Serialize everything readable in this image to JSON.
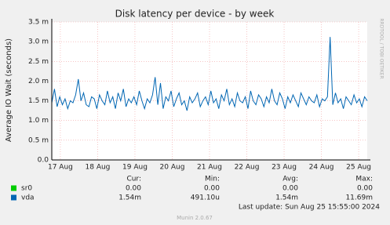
{
  "chart_data": {
    "type": "line",
    "title": "Disk latency per device - by week",
    "y_label": "Average IO Wait (seconds)",
    "side_text": "RRDTOOL / TOBI OETIKER",
    "xlim": [
      -0.23,
      8.23
    ],
    "xticks": [
      {
        "value": 0,
        "label": "17 Aug"
      },
      {
        "value": 1,
        "label": "18 Aug"
      },
      {
        "value": 2,
        "label": "19 Aug"
      },
      {
        "value": 3,
        "label": "20 Aug"
      },
      {
        "value": 4,
        "label": "21 Aug"
      },
      {
        "value": 5,
        "label": "22 Aug"
      },
      {
        "value": 6,
        "label": "23 Aug"
      },
      {
        "value": 7,
        "label": "24 Aug"
      },
      {
        "value": 8,
        "label": "25 Aug"
      }
    ],
    "ylim": [
      0,
      3.5
    ],
    "yticks": [
      {
        "value": 0,
        "label": "0.0"
      },
      {
        "value": 0.5,
        "label": "0.5 m"
      },
      {
        "value": 1,
        "label": "1.0 m"
      },
      {
        "value": 1.5,
        "label": "1.5 m"
      },
      {
        "value": 2,
        "label": "2.0 m"
      },
      {
        "value": 2.5,
        "label": "2.5 m"
      },
      {
        "value": 3,
        "label": "3.0 m"
      },
      {
        "value": 3.5,
        "label": "3.5 m"
      }
    ],
    "grid": true,
    "series": [
      {
        "name": "sr0",
        "color": "#00cc00",
        "values": [
          0,
          0
        ],
        "cur": "0.00",
        "min": "0.00",
        "avg": "0.00",
        "max": "0.00"
      },
      {
        "name": "vda",
        "color": "#0066b3",
        "values": [
          1.45,
          1.8,
          1.35,
          1.6,
          1.4,
          1.55,
          1.3,
          1.5,
          1.45,
          1.65,
          2.05,
          1.5,
          1.7,
          1.4,
          1.35,
          1.6,
          1.55,
          1.3,
          1.65,
          1.5,
          1.4,
          1.75,
          1.45,
          1.6,
          1.3,
          1.7,
          1.5,
          1.8,
          1.35,
          1.55,
          1.45,
          1.6,
          1.4,
          1.75,
          1.5,
          1.3,
          1.55,
          1.45,
          1.65,
          2.1,
          1.4,
          1.95,
          1.3,
          1.6,
          1.5,
          1.75,
          1.35,
          1.55,
          1.7,
          1.4,
          1.5,
          1.25,
          1.6,
          1.45,
          1.55,
          1.7,
          1.35,
          1.5,
          1.6,
          1.4,
          1.75,
          1.45,
          1.55,
          1.3,
          1.65,
          1.5,
          1.8,
          1.4,
          1.55,
          1.35,
          1.7,
          1.5,
          1.45,
          1.6,
          1.3,
          1.75,
          1.5,
          1.4,
          1.65,
          1.55,
          1.35,
          1.6,
          1.45,
          1.8,
          1.5,
          1.4,
          1.7,
          1.55,
          1.3,
          1.6,
          1.45,
          1.65,
          1.5,
          1.35,
          1.7,
          1.55,
          1.4,
          1.6,
          1.5,
          1.45,
          1.65,
          1.35,
          1.55,
          1.5,
          1.6,
          3.12,
          1.4,
          1.7,
          1.45,
          1.55,
          1.3,
          1.6,
          1.5,
          1.4,
          1.65,
          1.45,
          1.55,
          1.35,
          1.6,
          1.5
        ],
        "cur": "1.54m",
        "min": "491.10u",
        "avg": "1.54m",
        "max": "11.69m"
      }
    ],
    "columns": [
      "Cur:",
      "Min:",
      "Avg:",
      "Max:"
    ],
    "last_update": "Last update: Sun Aug 25 15:55:00 2024",
    "footer": "Munin 2.0.67"
  }
}
